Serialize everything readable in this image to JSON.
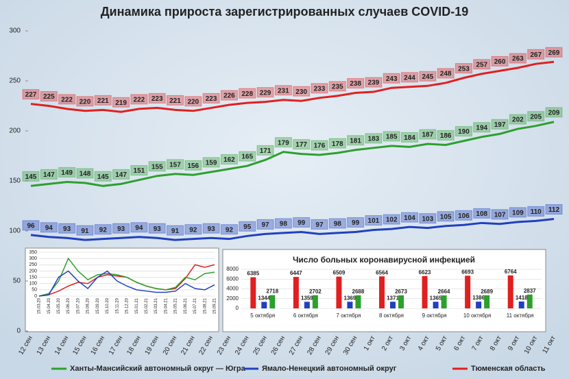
{
  "chart_data": [
    {
      "type": "line",
      "title": "Динамика прироста зарегистрированных случаев COVID-19",
      "categories": [
        "12 сен",
        "13 сен",
        "14 сен",
        "15 сен",
        "16 сен",
        "17 сен",
        "18 сен",
        "19 сен",
        "20 сен",
        "21 сен",
        "22 сен",
        "23 сен",
        "24 сен",
        "25 сен",
        "26 сен",
        "27 сен",
        "28 сен",
        "29 сен",
        "30 сен",
        "1 окт",
        "2 окт",
        "3 окт",
        "4 окт",
        "5 окт",
        "6 окт",
        "7 окт",
        "8 окт",
        "9 окт",
        "10 окт",
        "11 окт"
      ],
      "series": [
        {
          "name": "Ханты-Мансийский автономный округ — Югра",
          "color": "#2ca02c",
          "values": [
            145,
            147,
            149,
            148,
            145,
            147,
            151,
            155,
            157,
            156,
            159,
            162,
            165,
            171,
            179,
            177,
            176,
            178,
            181,
            183,
            185,
            184,
            187,
            186,
            190,
            194,
            197,
            202,
            205,
            209
          ]
        },
        {
          "name": "Ямало-Ненецкий автономный округ",
          "color": "#2040c0",
          "values": [
            96,
            94,
            93,
            91,
            92,
            93,
            94,
            93,
            91,
            92,
            93,
            92,
            95,
            97,
            98,
            99,
            97,
            98,
            99,
            101,
            102,
            104,
            103,
            105,
            106,
            108,
            107,
            109,
            110,
            112
          ]
        },
        {
          "name": "Тюменская область",
          "color": "#e02020",
          "values": [
            227,
            225,
            222,
            220,
            221,
            219,
            222,
            223,
            221,
            220,
            223,
            226,
            228,
            229,
            231,
            230,
            233,
            235,
            238,
            239,
            243,
            244,
            245,
            248,
            253,
            257,
            260,
            263,
            267,
            269
          ]
        }
      ],
      "ylim": [
        0,
        300
      ],
      "yticks": [
        0,
        50,
        100,
        150,
        200,
        250,
        300
      ],
      "grid": false,
      "legend": "bottom"
    },
    {
      "type": "line",
      "categories": [
        "15.03.20",
        "15.04.20",
        "15.05.20",
        "15.06.20",
        "15.07.20",
        "15.08.20",
        "15.09.20",
        "15.10.20",
        "15.11.20",
        "15.12.20",
        "15.01.21",
        "15.02.21",
        "15.03.21",
        "15.04.21",
        "15.05.21",
        "15.06.21",
        "15.07.21",
        "15.08.21",
        "15.09.21"
      ],
      "series": [
        {
          "color": "#e02020",
          "values": [
            0,
            10,
            40,
            80,
            110,
            100,
            150,
            170,
            160,
            150,
            110,
            80,
            60,
            50,
            60,
            140,
            250,
            230,
            250
          ]
        },
        {
          "color": "#2ca02c",
          "values": [
            0,
            20,
            120,
            300,
            200,
            130,
            170,
            180,
            170,
            150,
            110,
            80,
            60,
            50,
            70,
            150,
            130,
            180,
            190
          ]
        },
        {
          "color": "#2040c0",
          "values": [
            0,
            10,
            150,
            200,
            120,
            60,
            150,
            200,
            120,
            80,
            50,
            40,
            30,
            30,
            40,
            100,
            60,
            50,
            90
          ]
        }
      ],
      "ylim": [
        0,
        350
      ],
      "yticks": [
        0,
        50,
        100,
        150,
        200,
        250,
        300,
        350
      ],
      "grid": true
    },
    {
      "type": "bar",
      "title": "Число больных коронавирусной инфекцией",
      "categories": [
        "5 октября",
        "6 октября",
        "7 октября",
        "8 октября",
        "9 октября",
        "10 октября",
        "11 октября"
      ],
      "series": [
        {
          "color": "#e02020",
          "values": [
            6385,
            6447,
            6509,
            6564,
            6623,
            6693,
            6764
          ]
        },
        {
          "color": "#2040c0",
          "values": [
            1344,
            1359,
            1369,
            1371,
            1365,
            1386,
            1418
          ]
        },
        {
          "color": "#2ca02c",
          "values": [
            2718,
            2702,
            2688,
            2673,
            2664,
            2689,
            2837
          ]
        }
      ],
      "ylim": [
        0,
        8000
      ],
      "yticks": [
        0,
        2000,
        4000,
        6000,
        8000
      ],
      "grid": true
    }
  ]
}
